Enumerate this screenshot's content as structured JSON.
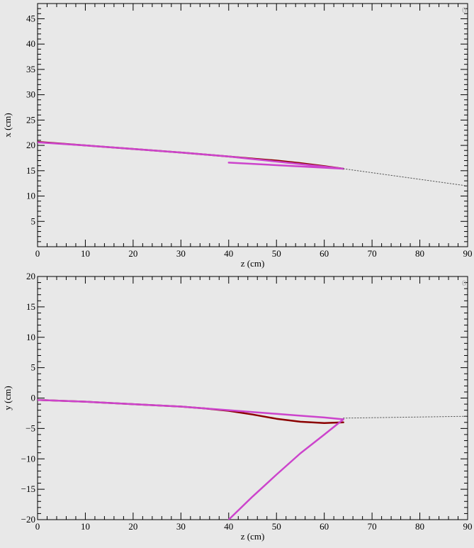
{
  "chart_data": [
    {
      "type": "line",
      "xlabel": "z (cm)",
      "ylabel": "x (cm)",
      "xlim": [
        0,
        90
      ],
      "ylim": [
        0,
        48
      ],
      "xticks": [
        0,
        10,
        20,
        30,
        40,
        50,
        60,
        70,
        80,
        90
      ],
      "yticks": [
        5,
        10,
        15,
        20,
        25,
        30,
        35,
        40,
        45
      ],
      "corner_mark": "0",
      "grid": false,
      "series": [
        {
          "color": "#8b0000",
          "style": "solid",
          "x": [
            0,
            10,
            20,
            30,
            40,
            45,
            50,
            55,
            60,
            64
          ],
          "y": [
            20.7,
            20.0,
            19.3,
            18.6,
            17.8,
            17.4,
            17.0,
            16.5,
            15.9,
            15.4
          ]
        },
        {
          "color": "#cc44cc",
          "style": "solid",
          "x": [
            0,
            10,
            20,
            30,
            40,
            45,
            50,
            55,
            60,
            64,
            40
          ],
          "y": [
            20.6,
            20.0,
            19.3,
            18.6,
            17.8,
            17.3,
            16.8,
            16.3,
            15.8,
            15.4,
            16.6
          ]
        },
        {
          "color": "#555555",
          "style": "dotted",
          "x": [
            64,
            90
          ],
          "y": [
            15.4,
            12.0
          ]
        }
      ]
    },
    {
      "type": "line",
      "xlabel": "z (cm)",
      "ylabel": "y (cm)",
      "xlim": [
        0,
        90
      ],
      "ylim": [
        -20,
        20
      ],
      "xticks": [
        0,
        10,
        20,
        30,
        40,
        50,
        60,
        70,
        80,
        90
      ],
      "yticks": [
        -20,
        -15,
        -10,
        -5,
        0,
        5,
        10,
        15,
        20
      ],
      "ytick_labels": [
        "−20",
        "−15",
        "−10",
        "−5",
        "0",
        "5",
        "10",
        "15",
        "20"
      ],
      "corner_mark": "0",
      "grid": false,
      "series": [
        {
          "color": "#8b0000",
          "style": "solid",
          "x": [
            0,
            10,
            20,
            30,
            35,
            40,
            45,
            50,
            55,
            60,
            64
          ],
          "y": [
            -0.3,
            -0.6,
            -1.0,
            -1.4,
            -1.7,
            -2.1,
            -2.7,
            -3.4,
            -3.9,
            -4.1,
            -4.0
          ]
        },
        {
          "color": "#cc44cc",
          "style": "solid",
          "x": [
            0,
            10,
            20,
            30,
            35,
            40,
            45,
            50,
            55,
            60,
            64
          ],
          "y": [
            -0.3,
            -0.6,
            -1.0,
            -1.4,
            -1.7,
            -2.0,
            -2.3,
            -2.6,
            -2.9,
            -3.2,
            -3.5
          ]
        },
        {
          "color": "#cc44cc",
          "style": "solid",
          "x": [
            64,
            60,
            55,
            50,
            45,
            40
          ],
          "y": [
            -3.5,
            -6.0,
            -9.1,
            -12.6,
            -16.2,
            -20
          ]
        },
        {
          "color": "#555555",
          "style": "dotted",
          "x": [
            64,
            90
          ],
          "y": [
            -3.3,
            -3.0
          ]
        }
      ]
    }
  ]
}
